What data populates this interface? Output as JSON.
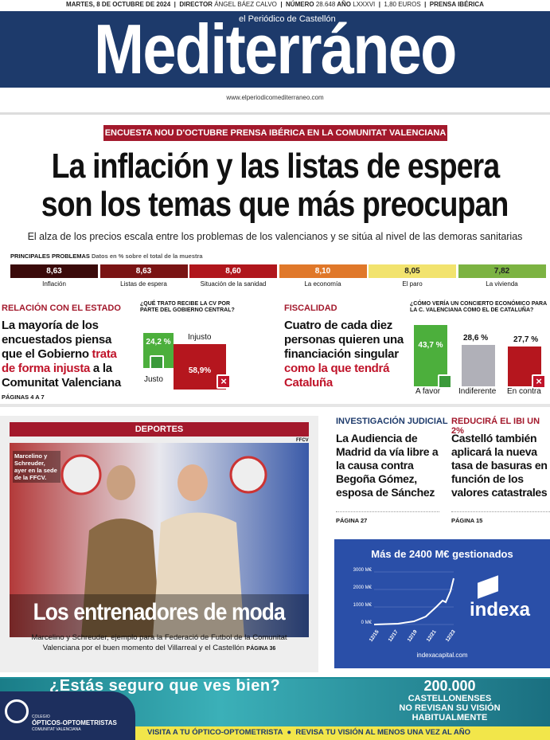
{
  "topbar": {
    "date": "MARTES, 8 DE OCTUBRE DE 2024",
    "director_label": "DIRECTOR",
    "director": "ÁNGEL BÁEZ CALVO",
    "number_label": "NÚMERO",
    "number": "28.648",
    "year_label": "AÑO",
    "year": "LXXXVI",
    "price": "1,80 EUROS",
    "group": "PRENSA IBÉRICA"
  },
  "masthead": {
    "subtitle": "el Periódico de Castellón",
    "title": "Mediterráneo",
    "url": "www.elperiodicomediterraneo.com"
  },
  "lead": {
    "kicker": "ENCUESTA NOU D'OCTUBRE PRENSA IBÉRICA EN LA COMUNITAT VALENCIANA",
    "headline_lines": [
      "La inflación y las listas de espera",
      "son los temas que más preocupan"
    ],
    "subhead": "El alza de los precios escala entre los problemas de los valencianos y se sitúa al nivel de las demoras sanitarias",
    "chart_label": "PRINCIPALES PROBLEMAS",
    "chart_note": "Datos en % sobre el total de la muestra",
    "problems": [
      {
        "value": "8,63",
        "label": "Inflación"
      },
      {
        "value": "8,63",
        "label": "Listas de espera"
      },
      {
        "value": "8,60",
        "label": "Situación de la sanidad"
      },
      {
        "value": "8,10",
        "label": "La economía"
      },
      {
        "value": "8,05",
        "label": "El paro"
      },
      {
        "value": "7,82",
        "label": "La vivienda"
      }
    ]
  },
  "state": {
    "section": "RELACIÓN CON EL ESTADO",
    "headline": [
      "La mayoría de los encuestados piensa que el Gobierno ",
      "trata de forma injusta",
      " a la Comunitat Valenciana"
    ],
    "question": "¿QUÉ TRATO RECIBE LA CV POR PARTE DEL GOBIERNO CENTRAL?",
    "answers": [
      {
        "label": "Justo",
        "value": "24,2 %"
      },
      {
        "label": "Injusto",
        "value": "58,9%"
      }
    ],
    "pages": "PÁGINAS 4 A 7"
  },
  "fiscal": {
    "section": "FISCALIDAD",
    "headline": [
      "Cuatro de cada diez personas quieren una financiación singular ",
      "como la que tendrá Cataluña"
    ],
    "question": "¿CÓMO VERÍA UN CONCIERTO ECONÓMICO PARA LA C. VALENCIANA COMO EL DE CATALUÑA?",
    "answers": [
      {
        "label": "A favor",
        "value": "43,7 %"
      },
      {
        "label": "Indiferente",
        "value": "28,6 %"
      },
      {
        "label": "En contra",
        "value": "27,7 %"
      }
    ]
  },
  "sports": {
    "section": "DEPORTES",
    "credit": "FFCV",
    "photo_caption": "Marcelino y Schreuder, ayer en la sede de la FFCV.",
    "headline": "Los entrenadores de moda",
    "summary": "Marcelino y Schreuder, ejemplo para la Federació de Futbol de la Comunitat Valenciana por el buen momento del Villarreal y el Castellón",
    "page": "PÁGINA 36"
  },
  "briefs": [
    {
      "section": "INVESTIGACIÓN JUDICIAL",
      "headline": "La Audiencia de Madrid da vía libre a la causa contra Begoña Gómez, esposa de Sánchez",
      "page": "PÁGINA 27"
    },
    {
      "section": "REDUCIRÁ EL IBI UN 2%",
      "headline": "Castelló también aplicará la nueva tasa de basuras en función de los valores catastrales",
      "page": "PÁGINA 15"
    }
  ],
  "ad_indexa": {
    "title": "Más de 2400 M€ gestionados",
    "y_labels": [
      "3000 M€",
      "2000 M€",
      "1000 M€",
      "0 M€"
    ],
    "x_labels": [
      "12/15",
      "12/17",
      "12/19",
      "12/21",
      "12/23"
    ],
    "brand": "indexa",
    "url": "indexacapital.com"
  },
  "ad_optics": {
    "question": "¿Estás seguro que ves bien?",
    "figure": "200.000",
    "claim_lines": [
      "CASTELLONENSES",
      "NO REVISAN SU VISIÓN",
      "HABITUALMENTE"
    ],
    "footer": [
      "VISITA A TU ÓPTICO-OPTOMETRISTA",
      "REVISA TU VISIÓN AL MENOS UNA VEZ AL AÑO"
    ],
    "logo": [
      "COLEGIO",
      "ÓPTICOS-OPTOMETRISTAS",
      "COMUNITAT VALENCIANA"
    ]
  }
}
